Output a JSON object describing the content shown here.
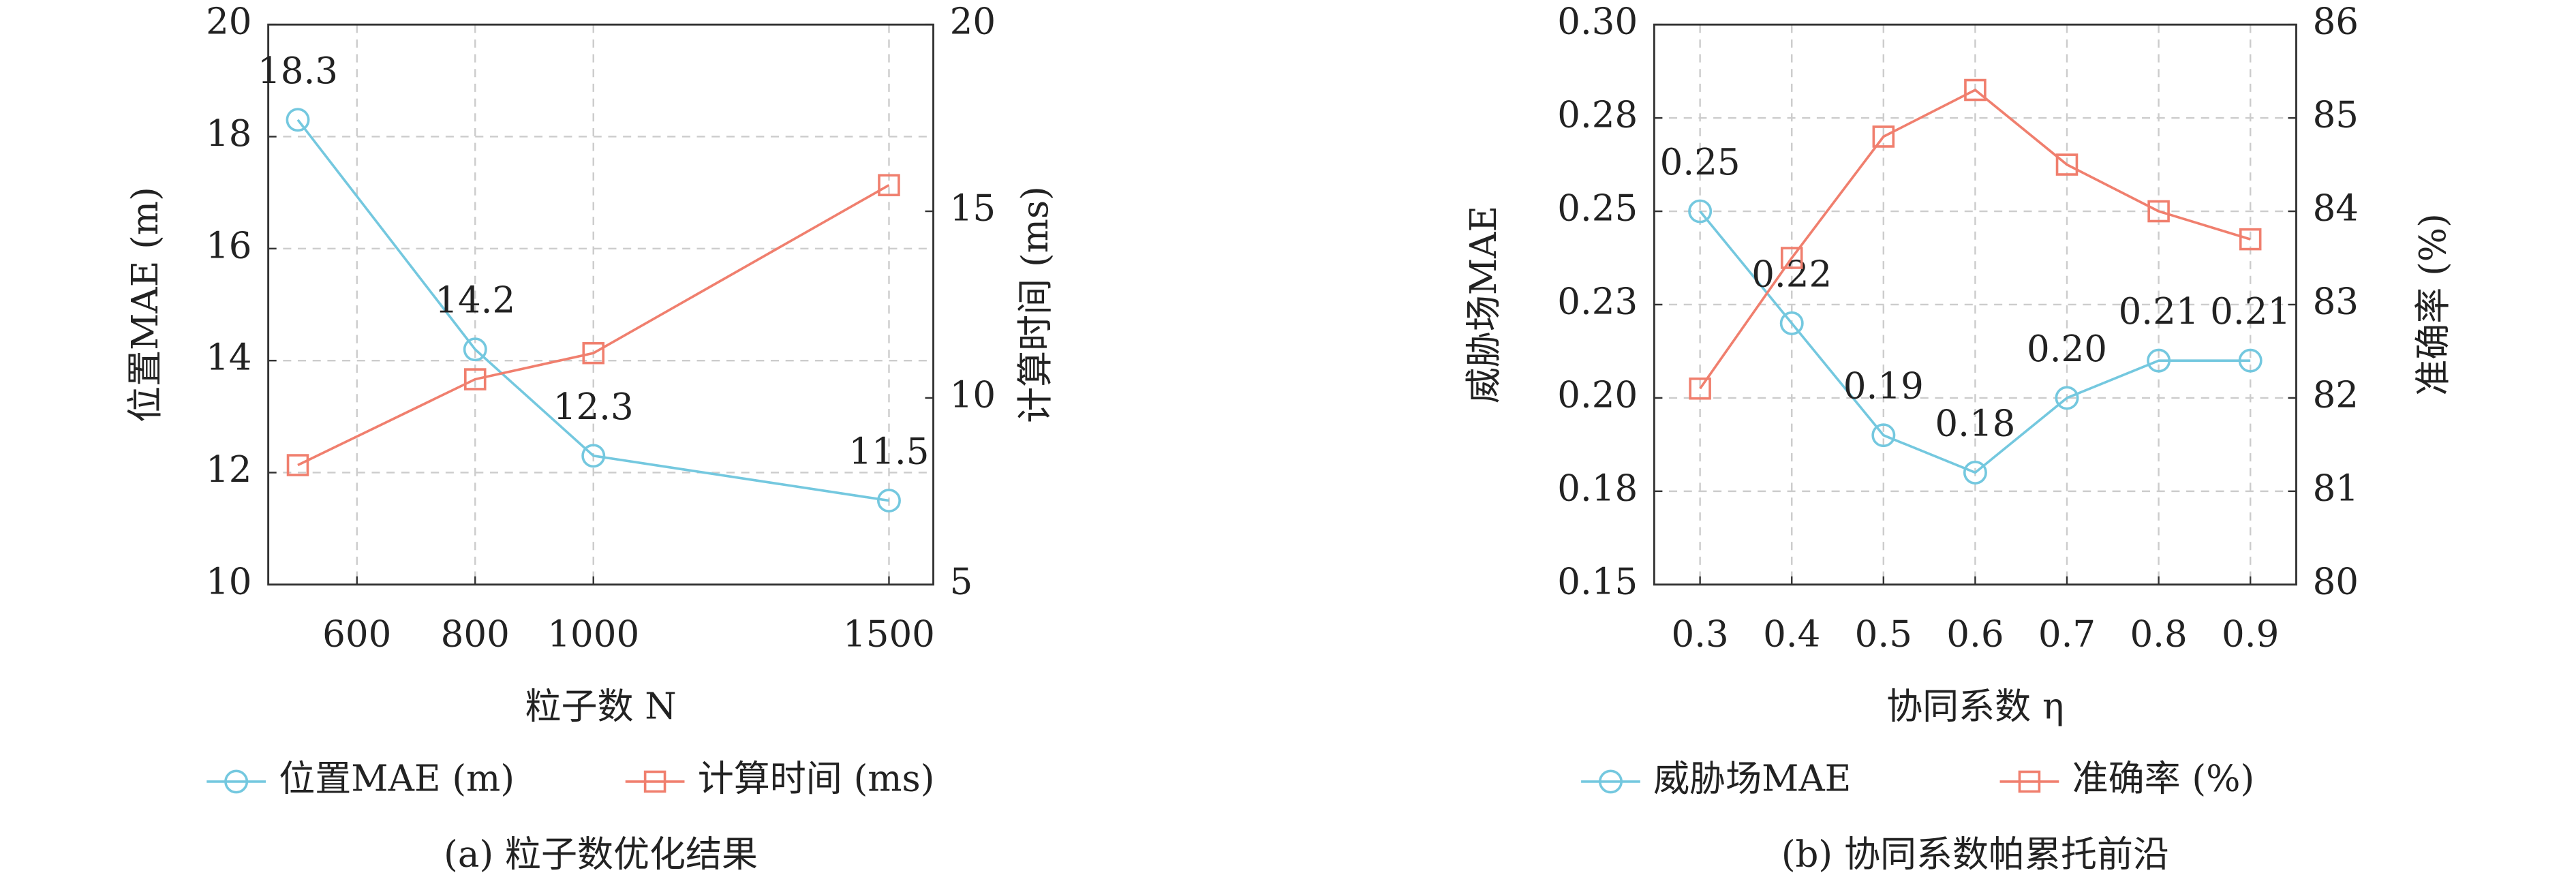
{
  "chart_data": [
    {
      "type": "line",
      "caption": "(a) 粒子数优化结果",
      "xlabel": "粒子数 N",
      "ylabel": "位置MAE (m)",
      "y2label": "计算时间 (ms)",
      "x": [
        500,
        800,
        1000,
        1500
      ],
      "xlim": [
        450,
        1575
      ],
      "xticks": [
        600,
        800,
        1000,
        1500
      ],
      "ylim": [
        10,
        20
      ],
      "yticks": [
        10,
        12,
        14,
        16,
        18,
        20
      ],
      "y2lim": [
        5,
        20
      ],
      "y2ticks": [
        5,
        10,
        15,
        20
      ],
      "grid": true,
      "series": [
        {
          "name": "位置MAE (m)",
          "color": "#74c8df",
          "marker": "circle",
          "show_labels": true,
          "values": [
            18.3,
            14.2,
            12.3,
            11.5
          ]
        },
        {
          "name": "计算时间 (ms)",
          "color": "#f07f6e",
          "marker": "square",
          "axis": "y2",
          "values": [
            8.2,
            10.5,
            11.2,
            15.7
          ]
        }
      ]
    },
    {
      "type": "line",
      "caption": "(b) 协同系数帕累托前沿",
      "xlabel": "协同系数 η",
      "ylabel": "威胁场MAE",
      "y2label": "准确率 (%)",
      "x": [
        0.3,
        0.4,
        0.5,
        0.6,
        0.7,
        0.8,
        0.9
      ],
      "xlim": [
        0.25,
        0.95
      ],
      "xticks": [
        0.3,
        0.4,
        0.5,
        0.6,
        0.7,
        0.8,
        0.9
      ],
      "ylim": [
        0.15,
        0.3
      ],
      "yticks": [
        {
          "value": 0.15,
          "label": "0.15"
        },
        {
          "value": 0.175,
          "label": "0.18"
        },
        {
          "value": 0.2,
          "label": "0.20"
        },
        {
          "value": 0.225,
          "label": "0.23"
        },
        {
          "value": 0.25,
          "label": "0.25"
        },
        {
          "value": 0.275,
          "label": "0.28"
        },
        {
          "value": 0.3,
          "label": "0.30"
        }
      ],
      "y2lim": [
        80,
        86
      ],
      "y2ticks": [
        80,
        81,
        82,
        83,
        84,
        85,
        86
      ],
      "grid": true,
      "series": [
        {
          "name": "威胁场MAE",
          "color": "#74c8df",
          "marker": "circle",
          "values": [
            0.25,
            0.22,
            0.19,
            0.18,
            0.2,
            0.21,
            0.21
          ],
          "value_labels": [
            "0.25",
            "0.22",
            "0.19",
            "0.18",
            "0.20",
            "0.21",
            "0.21"
          ]
        },
        {
          "name": "准确率 (%)",
          "color": "#f07f6e",
          "marker": "square",
          "axis": "y2",
          "values": [
            82.1,
            83.5,
            84.8,
            85.3,
            84.5,
            84.0,
            83.7
          ]
        }
      ]
    }
  ]
}
